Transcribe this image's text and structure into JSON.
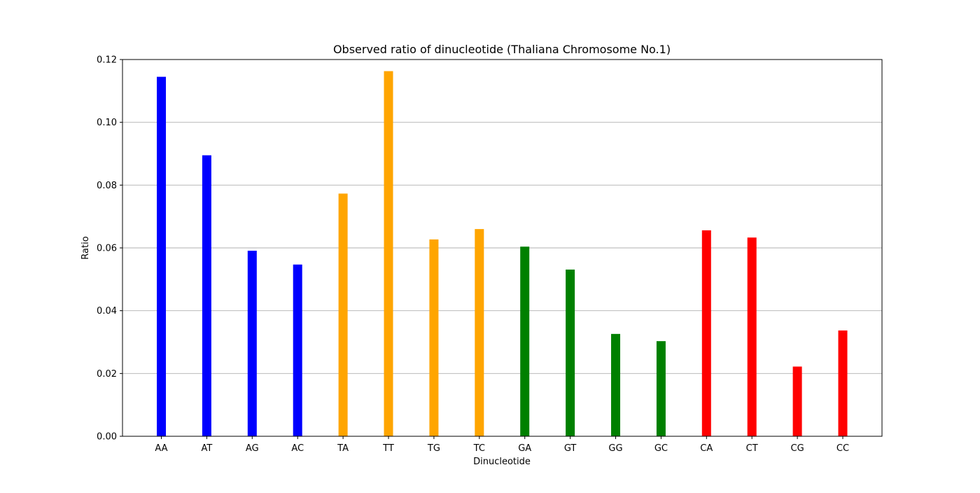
{
  "chart_data": {
    "type": "bar",
    "title": "Observed ratio of dinucleotide (Thaliana Chromosome No.1)",
    "xlabel": "Dinucleotide",
    "ylabel": "Ratio",
    "categories": [
      "AA",
      "AT",
      "AG",
      "AC",
      "TA",
      "TT",
      "TG",
      "TC",
      "GA",
      "GT",
      "GG",
      "GC",
      "CA",
      "CT",
      "CG",
      "CC"
    ],
    "values": [
      0.1145,
      0.0895,
      0.0591,
      0.0547,
      0.0773,
      0.1163,
      0.0627,
      0.066,
      0.0604,
      0.0531,
      0.0326,
      0.0303,
      0.0656,
      0.0633,
      0.0222,
      0.0337
    ],
    "bar_colors": [
      "#0000ff",
      "#0000ff",
      "#0000ff",
      "#0000ff",
      "#ffa500",
      "#ffa500",
      "#ffa500",
      "#ffa500",
      "#008000",
      "#008000",
      "#008000",
      "#008000",
      "#ff0000",
      "#ff0000",
      "#ff0000",
      "#ff0000"
    ],
    "ylim": [
      0,
      0.12
    ],
    "yticks": [
      0.0,
      0.02,
      0.04,
      0.06,
      0.08,
      0.1,
      0.12
    ],
    "ytick_labels": [
      "0.00",
      "0.02",
      "0.04",
      "0.06",
      "0.08",
      "0.10",
      "0.12"
    ],
    "grid": "horizontal",
    "grid_color": "#b0b0b0"
  }
}
